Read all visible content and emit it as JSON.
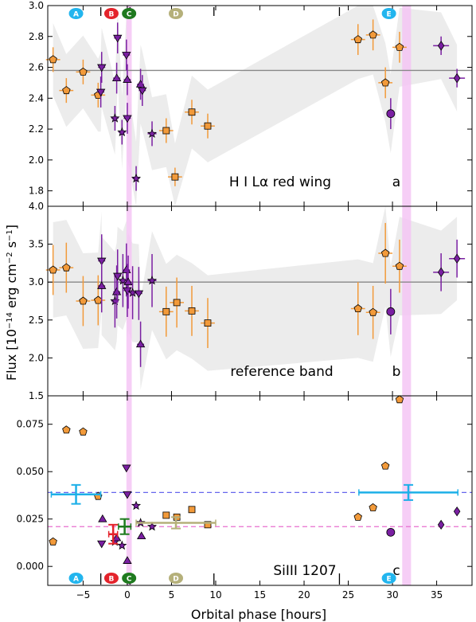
{
  "chart_data": {
    "type": "scatter",
    "xlabel": "Orbital phase [hours]",
    "ylabel": "Flux [10$^{-14}$ erg cm$^{-2}$ s$^{-1}$]",
    "ylabel_text": "Flux [10",
    "ylabel_sup1": "−14",
    "ylabel_mid": " erg cm",
    "ylabel_sup2": "−2",
    "ylabel_mid2": " s",
    "ylabel_sup3": "−1",
    "ylabel_end": "]",
    "xlim": [
      -9,
      39
    ],
    "x_ticks": [
      "−5",
      "0",
      "5",
      "10",
      "15",
      "20",
      "25",
      "30",
      "35"
    ],
    "x_tick_values": [
      -5,
      0,
      5,
      10,
      15,
      20,
      25,
      30,
      35
    ],
    "transit_band": [
      -0.1,
      0.5
    ],
    "later_band": [
      31.1,
      32.1
    ],
    "markers": [
      {
        "label": "A",
        "x": -5.8,
        "color": "#22b5ee",
        "text_color": "#ffffff"
      },
      {
        "label": "B",
        "x": -1.8,
        "color": "#e4232b",
        "text_color": "#ffffff"
      },
      {
        "label": "C",
        "x": 0.2,
        "color": "#1f7a1f",
        "text_color": "#ffffff"
      },
      {
        "label": "D",
        "x": 5.5,
        "color": "#b5b07a",
        "text_color": "#ffffff"
      },
      {
        "label": "E",
        "x": 29.6,
        "color": "#22b5ee",
        "text_color": "#ffffff"
      }
    ],
    "top_dashes": [
      -3.0,
      0.3,
      9.8,
      24.0
    ],
    "colors": {
      "orange": "#f29a3a",
      "purple": "#7a1fa2",
      "gray_band": "#ececec",
      "pink": "#f5c6f5",
      "cyan": "#1db0e8",
      "ref_blue": "#6666ee",
      "ref_pink": "#e76fcf"
    },
    "panels": [
      {
        "id": "a",
        "label": "a",
        "title": "H I Lα red wing",
        "ylim": [
          1.7,
          3.0
        ],
        "y_ticks": [
          "1.8",
          "2.0",
          "2.2",
          "2.4",
          "2.6",
          "2.8",
          "3.0"
        ],
        "y_tick_values": [
          1.8,
          2.0,
          2.2,
          2.4,
          2.6,
          2.8,
          3.0
        ],
        "reference_level": 2.58,
        "points": [
          {
            "x": -8.4,
            "y": 2.65,
            "marker": "pentagon",
            "color": "orange",
            "xerr": 0.8,
            "yerr": 0.08
          },
          {
            "x": -6.9,
            "y": 2.45,
            "marker": "pentagon",
            "color": "orange",
            "xerr": 0.8,
            "yerr": 0.08
          },
          {
            "x": -5.0,
            "y": 2.57,
            "marker": "pentagon",
            "color": "orange",
            "xerr": 0.8,
            "yerr": 0.08
          },
          {
            "x": -3.3,
            "y": 2.42,
            "marker": "pentagon",
            "color": "orange",
            "xerr": 0.8,
            "yerr": 0.08
          },
          {
            "x": -2.9,
            "y": 2.6,
            "marker": "triangle-down",
            "color": "purple",
            "xerr": 0.4,
            "yerr": 0.1
          },
          {
            "x": -3.0,
            "y": 2.44,
            "marker": "triangle-down",
            "color": "purple",
            "xerr": 0.4,
            "yerr": 0.1
          },
          {
            "x": -1.4,
            "y": 2.27,
            "marker": "star",
            "color": "purple",
            "xerr": 0.4,
            "yerr": 0.08
          },
          {
            "x": -1.2,
            "y": 2.53,
            "marker": "triangle-up",
            "color": "purple",
            "xerr": 0.4,
            "yerr": 0.1
          },
          {
            "x": -1.1,
            "y": 2.79,
            "marker": "triangle-down",
            "color": "purple",
            "xerr": 0.4,
            "yerr": 0.1
          },
          {
            "x": -0.6,
            "y": 2.18,
            "marker": "star",
            "color": "purple",
            "xerr": 0.4,
            "yerr": 0.08
          },
          {
            "x": -0.1,
            "y": 2.68,
            "marker": "triangle-down",
            "color": "purple",
            "xerr": 0.4,
            "yerr": 0.1
          },
          {
            "x": 0.0,
            "y": 2.52,
            "marker": "triangle-up",
            "color": "purple",
            "xerr": 0.4,
            "yerr": 0.1
          },
          {
            "x": 0.0,
            "y": 2.27,
            "marker": "triangle-down",
            "color": "purple",
            "xerr": 0.4,
            "yerr": 0.1
          },
          {
            "x": 1.0,
            "y": 1.88,
            "marker": "star",
            "color": "purple",
            "xerr": 0.4,
            "yerr": 0.08
          },
          {
            "x": 1.5,
            "y": 2.49,
            "marker": "triangle-up",
            "color": "purple",
            "xerr": 0.4,
            "yerr": 0.1
          },
          {
            "x": 1.7,
            "y": 2.45,
            "marker": "triangle-down",
            "color": "purple",
            "xerr": 0.4,
            "yerr": 0.1
          },
          {
            "x": 2.8,
            "y": 2.17,
            "marker": "star",
            "color": "purple",
            "xerr": 0.5,
            "yerr": 0.08
          },
          {
            "x": 4.4,
            "y": 2.19,
            "marker": "square",
            "color": "orange",
            "xerr": 0.8,
            "yerr": 0.08
          },
          {
            "x": 5.4,
            "y": 1.89,
            "marker": "square",
            "color": "orange",
            "xerr": 0.8,
            "yerr": 0.06
          },
          {
            "x": 7.3,
            "y": 2.31,
            "marker": "square",
            "color": "orange",
            "xerr": 0.8,
            "yerr": 0.08
          },
          {
            "x": 9.1,
            "y": 2.22,
            "marker": "square",
            "color": "orange",
            "xerr": 0.8,
            "yerr": 0.08
          },
          {
            "x": 26.1,
            "y": 2.78,
            "marker": "pentagon",
            "color": "orange",
            "xerr": 0.8,
            "yerr": 0.1
          },
          {
            "x": 27.8,
            "y": 2.81,
            "marker": "pentagon",
            "color": "orange",
            "xerr": 0.8,
            "yerr": 0.1
          },
          {
            "x": 29.2,
            "y": 2.5,
            "marker": "pentagon",
            "color": "orange",
            "xerr": 0.8,
            "yerr": 0.1
          },
          {
            "x": 29.8,
            "y": 2.3,
            "marker": "circle",
            "color": "purple",
            "xerr": 0.0,
            "yerr": 0.1
          },
          {
            "x": 30.8,
            "y": 2.73,
            "marker": "pentagon",
            "color": "orange",
            "xerr": 0.8,
            "yerr": 0.1
          },
          {
            "x": 35.5,
            "y": 2.74,
            "marker": "diamond",
            "color": "purple",
            "xerr": 0.9,
            "yerr": 0.06
          },
          {
            "x": 37.3,
            "y": 2.53,
            "marker": "diamond",
            "color": "purple",
            "xerr": 0.9,
            "yerr": 0.06
          }
        ]
      },
      {
        "id": "b",
        "label": "b",
        "title": "reference band",
        "ylim": [
          1.5,
          4.0
        ],
        "y_ticks": [
          "1.5",
          "2.0",
          "2.5",
          "3.0",
          "3.5",
          "4.0"
        ],
        "y_tick_values": [
          1.5,
          2.0,
          2.5,
          3.0,
          3.5,
          4.0
        ],
        "reference_level": 3.0,
        "points": [
          {
            "x": -8.4,
            "y": 3.16,
            "marker": "pentagon",
            "color": "orange",
            "xerr": 0.8,
            "yerr": 0.33
          },
          {
            "x": -6.9,
            "y": 3.19,
            "marker": "pentagon",
            "color": "orange",
            "xerr": 0.8,
            "yerr": 0.33
          },
          {
            "x": -5.0,
            "y": 2.75,
            "marker": "pentagon",
            "color": "orange",
            "xerr": 0.8,
            "yerr": 0.33
          },
          {
            "x": -3.3,
            "y": 2.76,
            "marker": "pentagon",
            "color": "orange",
            "xerr": 0.8,
            "yerr": 0.33
          },
          {
            "x": -2.9,
            "y": 3.28,
            "marker": "triangle-down",
            "color": "purple",
            "xerr": 0.4,
            "yerr": 0.35
          },
          {
            "x": -2.9,
            "y": 2.95,
            "marker": "triangle-up",
            "color": "purple",
            "xerr": 0.4,
            "yerr": 0.35
          },
          {
            "x": -1.4,
            "y": 2.75,
            "marker": "star",
            "color": "purple",
            "xerr": 0.4,
            "yerr": 0.35
          },
          {
            "x": -1.2,
            "y": 2.87,
            "marker": "triangle-up",
            "color": "purple",
            "xerr": 0.4,
            "yerr": 0.35
          },
          {
            "x": -1.1,
            "y": 3.08,
            "marker": "triangle-down",
            "color": "purple",
            "xerr": 0.4,
            "yerr": 0.35
          },
          {
            "x": -0.5,
            "y": 3.02,
            "marker": "star",
            "color": "purple",
            "xerr": 0.4,
            "yerr": 0.35
          },
          {
            "x": -0.1,
            "y": 3.16,
            "marker": "triangle-up",
            "color": "purple",
            "xerr": 0.4,
            "yerr": 0.35
          },
          {
            "x": 0.0,
            "y": 2.89,
            "marker": "triangle-down",
            "color": "purple",
            "xerr": 0.4,
            "yerr": 0.35
          },
          {
            "x": 0.1,
            "y": 3.0,
            "marker": "triangle-up",
            "color": "purple",
            "xerr": 0.4,
            "yerr": 0.35
          },
          {
            "x": 0.6,
            "y": 2.86,
            "marker": "star",
            "color": "purple",
            "xerr": 0.4,
            "yerr": 0.35
          },
          {
            "x": 1.3,
            "y": 2.85,
            "marker": "triangle-down",
            "color": "purple",
            "xerr": 0.4,
            "yerr": 0.35
          },
          {
            "x": 1.5,
            "y": 2.18,
            "marker": "triangle-up",
            "color": "purple",
            "xerr": 0.4,
            "yerr": 0.3
          },
          {
            "x": 2.8,
            "y": 3.02,
            "marker": "star",
            "color": "purple",
            "xerr": 0.5,
            "yerr": 0.35
          },
          {
            "x": 4.4,
            "y": 2.61,
            "marker": "square",
            "color": "orange",
            "xerr": 0.8,
            "yerr": 0.33
          },
          {
            "x": 5.6,
            "y": 2.73,
            "marker": "square",
            "color": "orange",
            "xerr": 0.8,
            "yerr": 0.33
          },
          {
            "x": 7.3,
            "y": 2.62,
            "marker": "square",
            "color": "orange",
            "xerr": 0.8,
            "yerr": 0.33
          },
          {
            "x": 9.1,
            "y": 2.46,
            "marker": "square",
            "color": "orange",
            "xerr": 0.8,
            "yerr": 0.33
          },
          {
            "x": 26.1,
            "y": 2.65,
            "marker": "pentagon",
            "color": "orange",
            "xerr": 0.8,
            "yerr": 0.35
          },
          {
            "x": 27.8,
            "y": 2.6,
            "marker": "pentagon",
            "color": "orange",
            "xerr": 0.8,
            "yerr": 0.35
          },
          {
            "x": 29.2,
            "y": 3.38,
            "marker": "pentagon",
            "color": "orange",
            "xerr": 0.8,
            "yerr": 0.4
          },
          {
            "x": 29.8,
            "y": 2.61,
            "marker": "circle",
            "color": "purple",
            "xerr": 0.0,
            "yerr": 0.3
          },
          {
            "x": 30.8,
            "y": 3.21,
            "marker": "pentagon",
            "color": "orange",
            "xerr": 0.8,
            "yerr": 0.35
          },
          {
            "x": 35.5,
            "y": 3.13,
            "marker": "diamond",
            "color": "purple",
            "xerr": 0.9,
            "yerr": 0.25
          },
          {
            "x": 37.3,
            "y": 3.31,
            "marker": "diamond",
            "color": "purple",
            "xerr": 0.9,
            "yerr": 0.25
          }
        ]
      },
      {
        "id": "c",
        "label": "c",
        "title": "SiIII 1207",
        "ylim": [
          -0.01,
          0.09
        ],
        "y_ticks": [
          "0.000",
          "0.025",
          "0.050",
          "0.075"
        ],
        "y_tick_values": [
          0.0,
          0.025,
          0.05,
          0.075
        ],
        "blue_level": 0.039,
        "pink_level": 0.021,
        "points": [
          {
            "x": -8.4,
            "y": 0.013,
            "marker": "pentagon",
            "color": "orange"
          },
          {
            "x": -6.9,
            "y": 0.072,
            "marker": "pentagon",
            "color": "orange"
          },
          {
            "x": -5.0,
            "y": 0.071,
            "marker": "pentagon",
            "color": "orange"
          },
          {
            "x": -3.3,
            "y": 0.037,
            "marker": "pentagon",
            "color": "orange"
          },
          {
            "x": -2.9,
            "y": 0.012,
            "marker": "triangle-down",
            "color": "purple"
          },
          {
            "x": -2.8,
            "y": 0.025,
            "marker": "triangle-up",
            "color": "purple"
          },
          {
            "x": -1.4,
            "y": 0.013,
            "marker": "star",
            "color": "purple"
          },
          {
            "x": -1.2,
            "y": 0.015,
            "marker": "triangle-up",
            "color": "purple"
          },
          {
            "x": -0.6,
            "y": 0.011,
            "marker": "star",
            "color": "purple"
          },
          {
            "x": -0.1,
            "y": 0.052,
            "marker": "triangle-down",
            "color": "purple"
          },
          {
            "x": 0.0,
            "y": 0.038,
            "marker": "triangle-down",
            "color": "purple"
          },
          {
            "x": 0.0,
            "y": 0.003,
            "marker": "triangle-up",
            "color": "purple"
          },
          {
            "x": 1.0,
            "y": 0.032,
            "marker": "star",
            "color": "purple"
          },
          {
            "x": 1.5,
            "y": 0.023,
            "marker": "star",
            "color": "purple"
          },
          {
            "x": 1.6,
            "y": 0.016,
            "marker": "triangle-up",
            "color": "purple"
          },
          {
            "x": 2.8,
            "y": 0.021,
            "marker": "star",
            "color": "purple"
          },
          {
            "x": 4.4,
            "y": 0.027,
            "marker": "square",
            "color": "orange"
          },
          {
            "x": 5.6,
            "y": 0.026,
            "marker": "square",
            "color": "orange"
          },
          {
            "x": 7.3,
            "y": 0.03,
            "marker": "square",
            "color": "orange"
          },
          {
            "x": 9.1,
            "y": 0.022,
            "marker": "square",
            "color": "orange"
          },
          {
            "x": 26.1,
            "y": 0.026,
            "marker": "pentagon",
            "color": "orange"
          },
          {
            "x": 27.8,
            "y": 0.031,
            "marker": "pentagon",
            "color": "orange"
          },
          {
            "x": 29.2,
            "y": 0.053,
            "marker": "pentagon",
            "color": "orange"
          },
          {
            "x": 29.8,
            "y": 0.018,
            "marker": "circle",
            "color": "purple"
          },
          {
            "x": 30.8,
            "y": 0.088,
            "marker": "pentagon",
            "color": "orange"
          },
          {
            "x": 35.5,
            "y": 0.022,
            "marker": "diamond",
            "color": "purple"
          },
          {
            "x": 37.3,
            "y": 0.029,
            "marker": "diamond",
            "color": "purple"
          }
        ],
        "average_points": [
          {
            "label": "A",
            "x": -5.8,
            "y": 0.038,
            "xerr": 2.8,
            "yerr": 0.005,
            "color": "#1db0e8"
          },
          {
            "label": "B",
            "x": -1.6,
            "y": 0.017,
            "xerr": 0.5,
            "yerr": 0.005,
            "color": "#e4232b"
          },
          {
            "label": "C",
            "x": -0.3,
            "y": 0.021,
            "xerr": 0.7,
            "yerr": 0.004,
            "color": "#1f7a1f"
          },
          {
            "label": "D",
            "x": 5.5,
            "y": 0.023,
            "xerr": 4.5,
            "yerr": 0.003,
            "color": "#b5b07a"
          },
          {
            "label": "E",
            "x": 31.8,
            "y": 0.039,
            "xerr": 5.6,
            "yerr": 0.004,
            "color": "#1db0e8"
          }
        ]
      }
    ]
  }
}
